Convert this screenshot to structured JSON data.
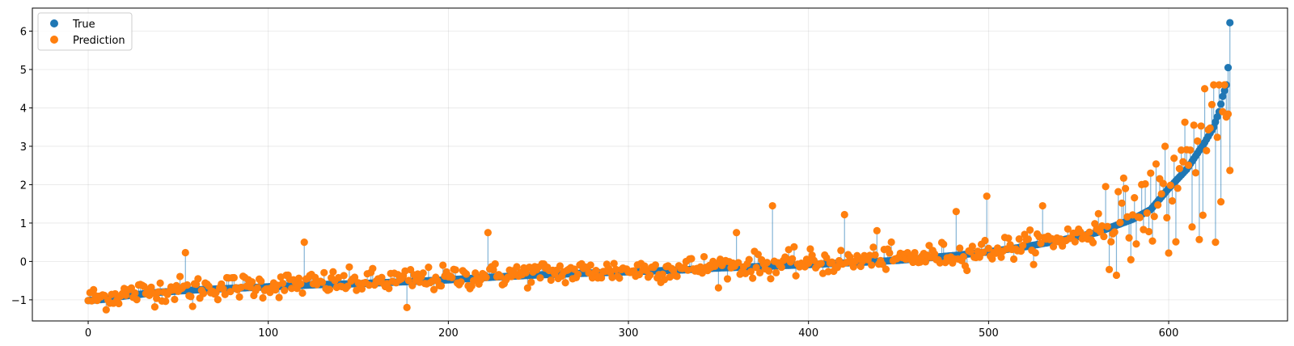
{
  "chart_data": {
    "type": "scatter",
    "title": "",
    "xlabel": "",
    "ylabel": "",
    "xlim": [
      -31,
      666
    ],
    "ylim": [
      -1.55,
      6.6
    ],
    "xticks": [
      0,
      100,
      200,
      300,
      400,
      500,
      600
    ],
    "yticks": [
      -1,
      0,
      1,
      2,
      3,
      4,
      5,
      6
    ],
    "grid": true,
    "legend_position": "top-left",
    "colors": {
      "true": "#1f77b4",
      "prediction": "#ff7f0e",
      "stem": "#1f77b4"
    },
    "series": [
      {
        "name": "True"
      },
      {
        "name": "Prediction"
      }
    ],
    "true_curve_anchors": [
      [
        0,
        -1.02
      ],
      [
        10,
        -0.98
      ],
      [
        20,
        -0.9
      ],
      [
        40,
        -0.8
      ],
      [
        60,
        -0.74
      ],
      [
        80,
        -0.7
      ],
      [
        100,
        -0.66
      ],
      [
        130,
        -0.6
      ],
      [
        150,
        -0.58
      ],
      [
        180,
        -0.52
      ],
      [
        200,
        -0.48
      ],
      [
        220,
        -0.42
      ],
      [
        250,
        -0.35
      ],
      [
        280,
        -0.3
      ],
      [
        300,
        -0.27
      ],
      [
        330,
        -0.22
      ],
      [
        350,
        -0.17
      ],
      [
        380,
        -0.12
      ],
      [
        400,
        -0.08
      ],
      [
        430,
        -0.02
      ],
      [
        450,
        0.03
      ],
      [
        480,
        0.15
      ],
      [
        500,
        0.25
      ],
      [
        520,
        0.38
      ],
      [
        540,
        0.55
      ],
      [
        560,
        0.75
      ],
      [
        580,
        1.1
      ],
      [
        590,
        1.35
      ],
      [
        600,
        1.9
      ],
      [
        610,
        2.4
      ],
      [
        620,
        3.1
      ],
      [
        625,
        3.5
      ],
      [
        628,
        3.9
      ],
      [
        630,
        4.3
      ],
      [
        632,
        4.6
      ],
      [
        633,
        5.05
      ],
      [
        634,
        6.22
      ]
    ],
    "prediction_outliers": [
      [
        54,
        0.23
      ],
      [
        58,
        -1.17
      ],
      [
        120,
        0.5
      ],
      [
        177,
        -1.2
      ],
      [
        222,
        0.75
      ],
      [
        360,
        0.75
      ],
      [
        380,
        1.45
      ],
      [
        420,
        1.22
      ],
      [
        438,
        0.8
      ],
      [
        482,
        1.3
      ],
      [
        499,
        1.7
      ],
      [
        530,
        1.45
      ],
      [
        565,
        1.95
      ],
      [
        590,
        2.3
      ],
      [
        598,
        3.0
      ],
      [
        607,
        2.9
      ],
      [
        614,
        3.55
      ],
      [
        620,
        4.5
      ],
      [
        626,
        0.5
      ],
      [
        630,
        3.9
      ],
      [
        634,
        2.37
      ],
      [
        617,
        0.57
      ],
      [
        600,
        0.22
      ]
    ],
    "n_points": 635
  }
}
